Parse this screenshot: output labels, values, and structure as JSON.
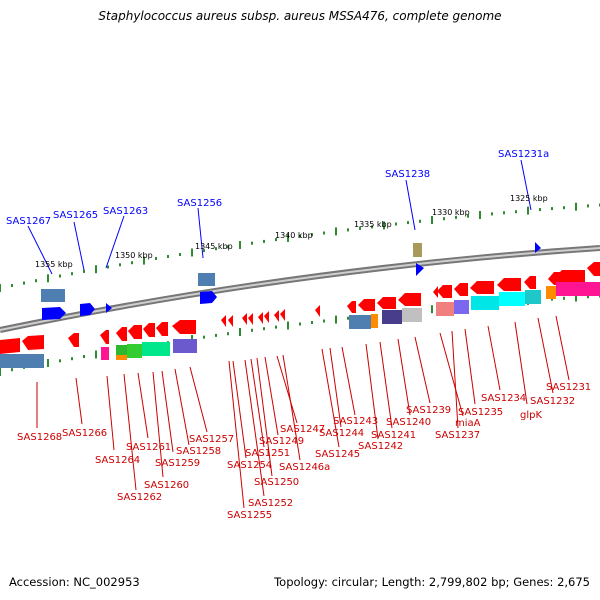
{
  "title": "Staphylococcus aureus subsp. aureus MSSA476, complete genome",
  "accession": "Accession: NC_002953",
  "summary": "Topology: circular; Length: 2,799,802 bp; Genes: 2,675",
  "colors": {
    "backbone": "#888888",
    "gene_forward": "#0000ff",
    "gene_reverse": "#ff0000",
    "label_forward": "#0000ff",
    "label_reverse": "#cc0000",
    "tick_major": "#006600",
    "tick_minor": "#339933"
  },
  "scale_labels": [
    "1355 kbp",
    "1350 kbp",
    "1345 kbp",
    "1340 kbp",
    "1335 kbp",
    "1330 kbp",
    "1325 kbp"
  ],
  "forward_labels": [
    "SAS1267",
    "SAS1265",
    "SAS1263",
    "SAS1256",
    "SAS1238",
    "SAS1231a"
  ],
  "reverse_labels": [
    "SAS1268",
    "SAS1266",
    "SAS1264",
    "SAS1262",
    "SAS1261",
    "SAS1260",
    "SAS1259",
    "SAS1258",
    "SAS1257",
    "SAS1255",
    "SAS1254",
    "SAS1252",
    "SAS1251",
    "SAS1250",
    "SAS1249",
    "SAS1247",
    "SAS1246a",
    "SAS1245",
    "SAS1244",
    "SAS1243",
    "SAS1242",
    "SAS1241",
    "SAS1240",
    "SAS1239",
    "miaA",
    "SAS1237",
    "SAS1235",
    "SAS1234",
    "glpK",
    "SAS1232",
    "SAS1231"
  ]
}
